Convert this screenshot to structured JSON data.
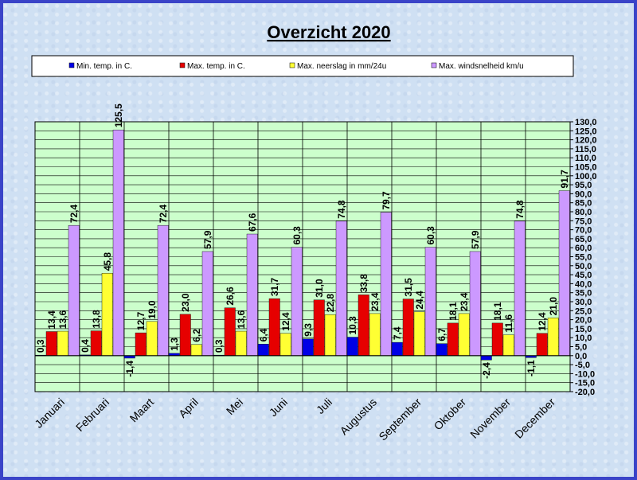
{
  "chart_data": {
    "type": "bar",
    "title": "Overzicht 2020",
    "categories": [
      "Januari",
      "Februari",
      "Maart",
      "April",
      "Mei",
      "Juni",
      "Juli",
      "Augustus",
      "September",
      "Oktober",
      "November",
      "December"
    ],
    "series": [
      {
        "name": "Min. temp. in C.",
        "color": "#0000e6",
        "values": [
          0.3,
          0.4,
          -1.4,
          1.3,
          0.3,
          6.4,
          9.3,
          10.3,
          7.4,
          6.7,
          -2.4,
          -1.1
        ],
        "labels": [
          "0,3",
          "0,4",
          "-1,4",
          "1,3",
          "0,3",
          "6,4",
          "9,3",
          "10,3",
          "7,4",
          "6,7",
          "-2,4",
          "-1,1"
        ]
      },
      {
        "name": "Max. temp. in C.",
        "color": "#e60000",
        "values": [
          13.4,
          13.8,
          12.7,
          23.0,
          26.6,
          31.7,
          31.0,
          33.8,
          31.5,
          18.1,
          18.1,
          12.4
        ],
        "labels": [
          "13,4",
          "13,8",
          "12,7",
          "23,0",
          "26,6",
          "31,7",
          "31,0",
          "33,8",
          "31,5",
          "18,1",
          "18,1",
          "12,4"
        ]
      },
      {
        "name": "Max. neerslag in mm/24u",
        "color": "#ffff33",
        "values": [
          13.6,
          45.8,
          19.0,
          6.2,
          13.6,
          12.4,
          22.8,
          23.4,
          24.4,
          23.4,
          11.6,
          21.0
        ],
        "labels": [
          "13,6",
          "45,8",
          "19,0",
          "6,2",
          "13,6",
          "12,4",
          "22,8",
          "23,4",
          "24,4",
          "23,4",
          "11,6",
          "21,0"
        ]
      },
      {
        "name": "Max. windsnelheid km/u",
        "color": "#cc99ff",
        "values": [
          72.4,
          125.5,
          72.4,
          57.9,
          67.6,
          60.3,
          74.8,
          79.7,
          60.3,
          57.9,
          74.8,
          91.7
        ],
        "labels": [
          "72,4",
          "125,5",
          "72,4",
          "57,9",
          "67,6",
          "60,3",
          "74,8",
          "79,7",
          "60,3",
          "57,9",
          "74,8",
          "91,7"
        ]
      }
    ],
    "ylim": [
      -20,
      130
    ],
    "yticks": [
      "130,0",
      "125,0",
      "120,0",
      "115,0",
      "110,0",
      "105,0",
      "100,0",
      "95,0",
      "90,0",
      "85,0",
      "80,0",
      "75,0",
      "70,0",
      "65,0",
      "60,0",
      "55,0",
      "50,0",
      "45,0",
      "40,0",
      "35,0",
      "30,0",
      "25,0",
      "20,0",
      "15,0",
      "10,0",
      "5,0",
      "0,0",
      "-5,0",
      "-10,0",
      "-15,0",
      "-20,0"
    ],
    "ystep": 5,
    "grid": true,
    "legend_position": "top"
  }
}
